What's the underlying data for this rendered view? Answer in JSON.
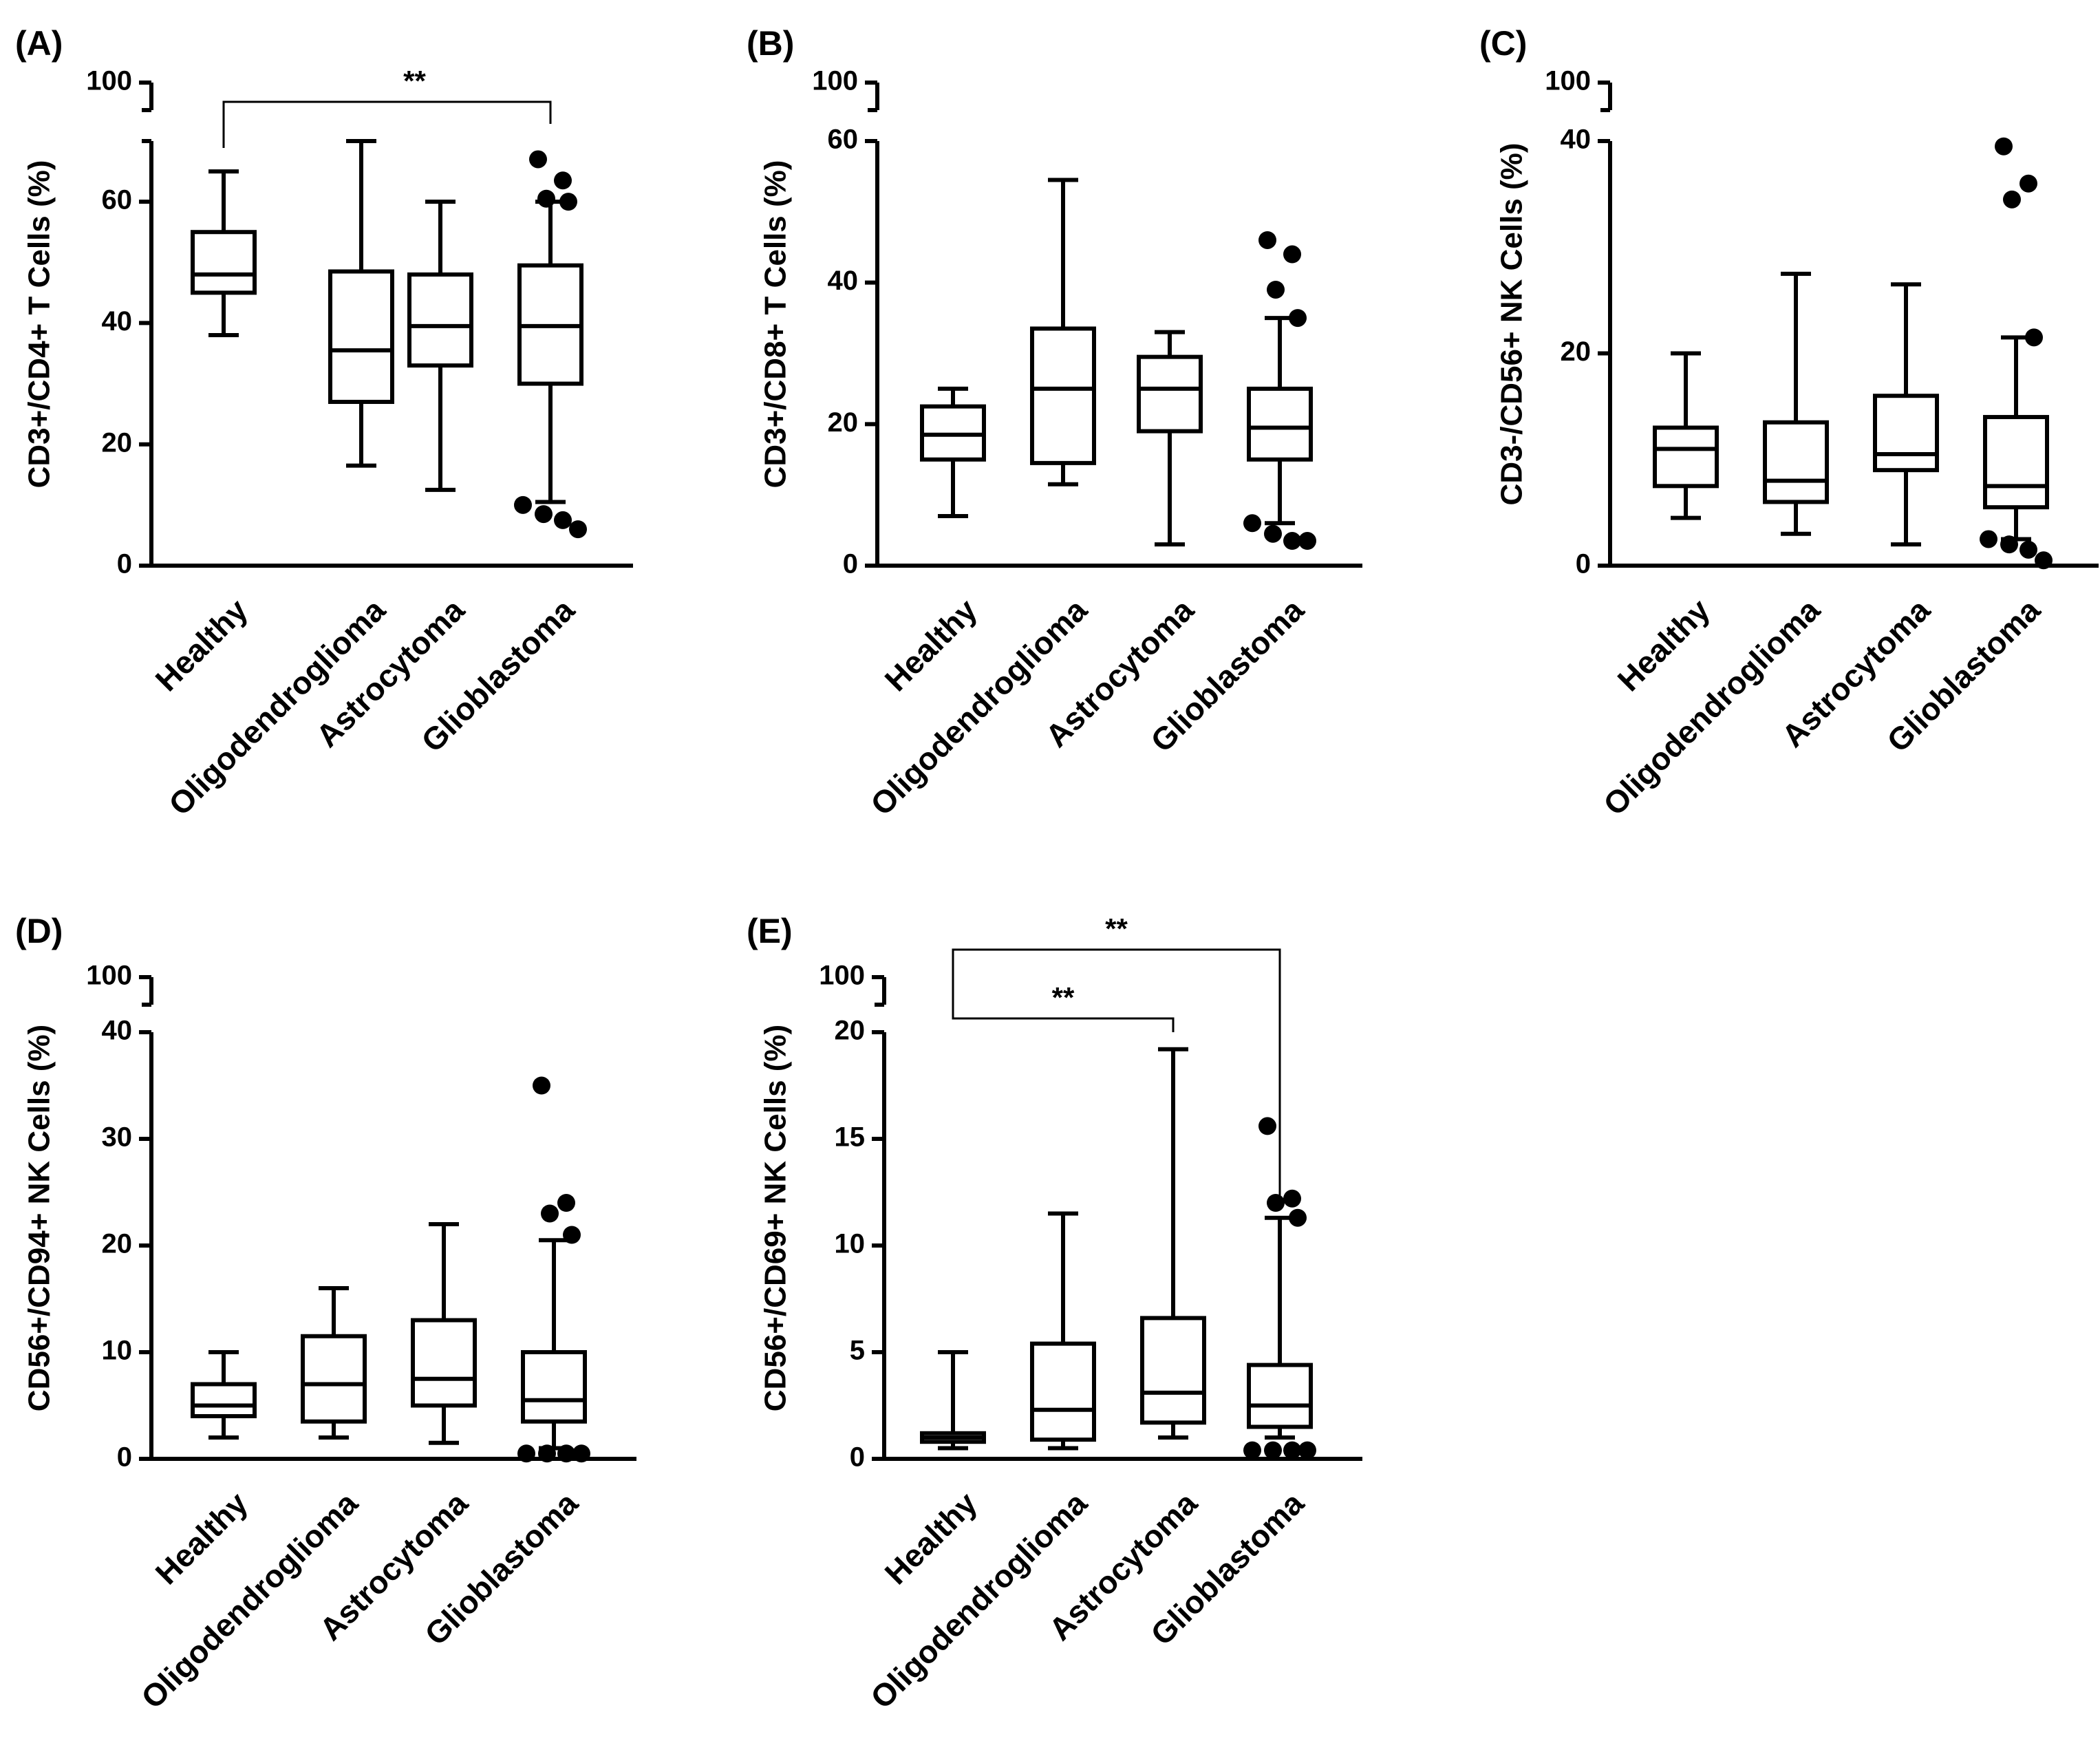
{
  "figure": {
    "categories": [
      "Healthy",
      "Oligodendroglioma",
      "Astrocytoma",
      "Glioblastoma"
    ]
  },
  "chart_data": [
    {
      "panel": "(A)",
      "type": "box",
      "ylabel": "CD3+/CD4+ T Cells (%)",
      "ylim": [
        0,
        70
      ],
      "yticks": [
        0,
        20,
        40,
        60
      ],
      "broken_axis_top": "100",
      "categories": [
        "Healthy",
        "Oligodendroglioma",
        "Astrocytoma",
        "Glioblastoma"
      ],
      "boxes": [
        {
          "min": 38,
          "q1": 45,
          "median": 48,
          "q3": 55,
          "max": 65,
          "outliers": []
        },
        {
          "min": 16.5,
          "q1": 27,
          "median": 35.5,
          "q3": 48.5,
          "max": 70,
          "outliers": []
        },
        {
          "min": 12.5,
          "q1": 33,
          "median": 39.5,
          "q3": 48,
          "max": 60,
          "outliers": []
        },
        {
          "min": 10.5,
          "q1": 30,
          "median": 39.5,
          "q3": 49.5,
          "max": 60,
          "outliers": [
            67,
            63.5,
            60.5,
            60,
            10,
            8.5,
            7.5,
            6
          ]
        }
      ],
      "significance": [
        {
          "from": 0,
          "to": 3,
          "label": "**"
        }
      ]
    },
    {
      "panel": "(B)",
      "type": "box",
      "ylabel": "CD3+/CD8+ T Cells (%)",
      "ylim": [
        0,
        60
      ],
      "yticks": [
        0,
        20,
        40,
        60
      ],
      "broken_axis_top": "100",
      "categories": [
        "Healthy",
        "Oligodendroglioma",
        "Astrocytoma",
        "Glioblastoma"
      ],
      "boxes": [
        {
          "min": 7,
          "q1": 15,
          "median": 18.5,
          "q3": 22.5,
          "max": 25,
          "outliers": []
        },
        {
          "min": 11.5,
          "q1": 14.5,
          "median": 25,
          "q3": 33.5,
          "max": 54.5,
          "outliers": []
        },
        {
          "min": 3,
          "q1": 19,
          "median": 25,
          "q3": 29.5,
          "max": 33,
          "outliers": []
        },
        {
          "min": 6,
          "q1": 15,
          "median": 19.5,
          "q3": 25,
          "max": 35,
          "outliers": [
            46,
            44,
            39,
            35,
            6,
            4.5,
            3.5,
            3.5
          ]
        }
      ],
      "significance": []
    },
    {
      "panel": "(C)",
      "type": "box",
      "ylabel": "CD3-/CD56+ NK Cells (%)",
      "ylim": [
        0,
        40
      ],
      "yticks": [
        0,
        20,
        40
      ],
      "broken_axis_top": "100",
      "categories": [
        "Healthy",
        "Oligodendroglioma",
        "Astrocytoma",
        "Glioblastoma"
      ],
      "boxes": [
        {
          "min": 4.5,
          "q1": 7.5,
          "median": 11,
          "q3": 13,
          "max": 20,
          "outliers": []
        },
        {
          "min": 3,
          "q1": 6,
          "median": 8,
          "q3": 13.5,
          "max": 27.5,
          "outliers": []
        },
        {
          "min": 2,
          "q1": 9,
          "median": 10.5,
          "q3": 16,
          "max": 26.5,
          "outliers": []
        },
        {
          "min": 2.5,
          "q1": 5.5,
          "median": 7.5,
          "q3": 14,
          "max": 21.5,
          "outliers": [
            39.5,
            36,
            34.5,
            21.5,
            2.5,
            2,
            1.5,
            0.5
          ]
        }
      ],
      "significance": []
    },
    {
      "panel": "(D)",
      "type": "box",
      "ylabel": "CD56+/CD94+ NK Cells (%)",
      "ylim": [
        0,
        40
      ],
      "yticks": [
        0,
        10,
        20,
        30,
        40
      ],
      "broken_axis_top": "100",
      "categories": [
        "Healthy",
        "Oligodendroglioma",
        "Astrocytoma",
        "Glioblastoma"
      ],
      "boxes": [
        {
          "min": 2,
          "q1": 4,
          "median": 5,
          "q3": 7,
          "max": 10,
          "outliers": []
        },
        {
          "min": 2,
          "q1": 3.5,
          "median": 7,
          "q3": 11.5,
          "max": 16,
          "outliers": []
        },
        {
          "min": 1.5,
          "q1": 5,
          "median": 7.5,
          "q3": 13,
          "max": 22,
          "outliers": []
        },
        {
          "min": 1,
          "q1": 3.5,
          "median": 5.5,
          "q3": 10,
          "max": 20.5,
          "outliers": [
            35,
            24,
            23,
            21,
            0.5,
            0.5,
            0.5,
            0.5
          ]
        }
      ],
      "significance": []
    },
    {
      "panel": "(E)",
      "type": "box",
      "ylabel": "CD56+/CD69+ NK Cells (%)",
      "ylim": [
        0,
        20
      ],
      "yticks": [
        0,
        5,
        10,
        15,
        20
      ],
      "broken_axis_top": "100",
      "categories": [
        "Healthy",
        "Oligodendroglioma",
        "Astrocytoma",
        "Glioblastoma"
      ],
      "boxes": [
        {
          "min": 0.5,
          "q1": 0.8,
          "median": 1,
          "q3": 1.2,
          "max": 5,
          "outliers": []
        },
        {
          "min": 0.5,
          "q1": 0.9,
          "median": 2.3,
          "q3": 5.4,
          "max": 11.5,
          "outliers": []
        },
        {
          "min": 1,
          "q1": 1.7,
          "median": 3.1,
          "q3": 6.6,
          "max": 19.2,
          "outliers": []
        },
        {
          "min": 1,
          "q1": 1.5,
          "median": 2.5,
          "q3": 4.4,
          "max": 11.3,
          "outliers": [
            15.6,
            12.2,
            12,
            11.3,
            0.4,
            0.4,
            0.4,
            0.4
          ]
        }
      ],
      "significance": [
        {
          "from": 0,
          "to": 2,
          "label": "**"
        },
        {
          "from": 0,
          "to": 3,
          "label": "**"
        }
      ]
    }
  ]
}
